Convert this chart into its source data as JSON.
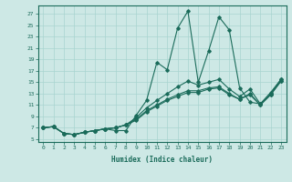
{
  "title": "",
  "xlabel": "Humidex (Indice chaleur)",
  "bg_color": "#cde8e5",
  "line_color": "#1a6b5a",
  "grid_color": "#a8d4d0",
  "xlim": [
    -0.5,
    23.5
  ],
  "ylim": [
    4.5,
    28.5
  ],
  "xticks": [
    0,
    1,
    2,
    3,
    4,
    5,
    6,
    7,
    8,
    9,
    10,
    11,
    12,
    13,
    14,
    15,
    16,
    17,
    18,
    19,
    20,
    21,
    22,
    23
  ],
  "yticks": [
    5,
    7,
    9,
    11,
    13,
    15,
    17,
    19,
    21,
    23,
    25,
    27
  ],
  "series": [
    [
      7.0,
      7.2,
      6.0,
      5.8,
      6.2,
      6.5,
      6.8,
      6.5,
      6.5,
      9.2,
      11.8,
      18.5,
      17.2,
      24.5,
      27.5,
      15.0,
      20.5,
      26.5,
      24.2,
      14.0,
      11.5,
      11.2,
      13.2,
      15.5
    ],
    [
      7.0,
      7.2,
      6.0,
      5.8,
      6.2,
      6.5,
      6.8,
      7.0,
      7.5,
      8.8,
      10.5,
      11.8,
      13.0,
      14.2,
      15.2,
      14.5,
      15.0,
      15.5,
      13.8,
      12.5,
      13.8,
      11.2,
      13.0,
      15.5
    ],
    [
      7.0,
      7.2,
      6.0,
      5.8,
      6.2,
      6.5,
      6.8,
      7.0,
      7.5,
      8.5,
      10.0,
      11.0,
      12.0,
      12.8,
      13.5,
      13.5,
      14.0,
      14.2,
      13.0,
      12.0,
      13.0,
      11.0,
      12.8,
      15.2
    ],
    [
      7.0,
      7.2,
      6.0,
      5.8,
      6.2,
      6.5,
      6.8,
      7.0,
      7.5,
      8.3,
      9.8,
      10.8,
      11.8,
      12.5,
      13.2,
      13.2,
      13.8,
      14.0,
      12.8,
      12.0,
      12.8,
      11.0,
      12.8,
      15.2
    ]
  ]
}
